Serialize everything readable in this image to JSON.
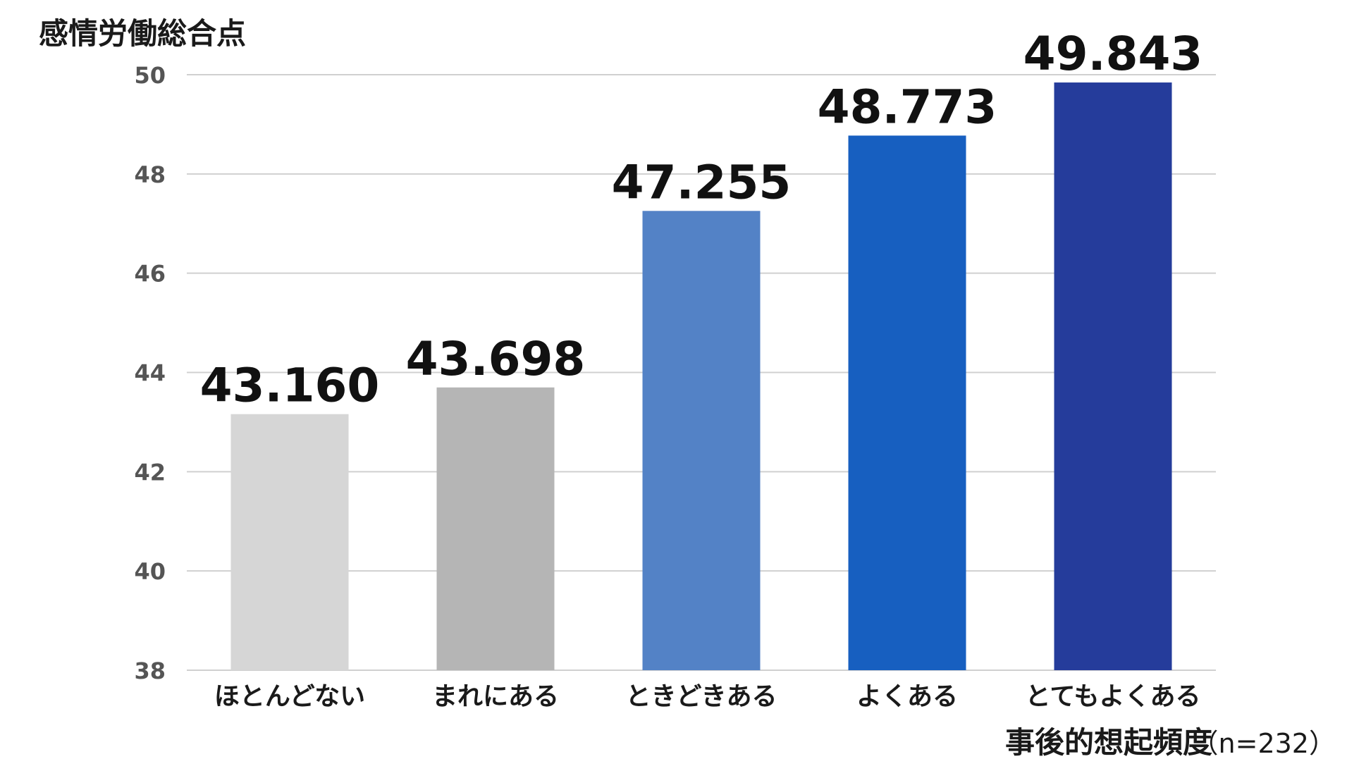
{
  "chart_data": {
    "type": "bar",
    "ylabel": "感情労働総合点",
    "xlabel": "事後的想起頻度",
    "note": "（n=232）",
    "ylim": [
      38,
      50
    ],
    "yticks": [
      "50",
      "48",
      "46",
      "44",
      "42",
      "40",
      "38"
    ],
    "categories": [
      "ほとんどない",
      "まれにある",
      "ときどきある",
      "よくある",
      "とてもよくある"
    ],
    "values": [
      43.16,
      43.698,
      47.255,
      48.773,
      49.843
    ],
    "data_labels": [
      "43.160",
      "43.698",
      "47.255",
      "48.773",
      "49.843"
    ],
    "colors": [
      "#d6d6d6",
      "#b5b5b5",
      "#5382c6",
      "#175fc0",
      "#253c9b"
    ],
    "grid": true
  }
}
